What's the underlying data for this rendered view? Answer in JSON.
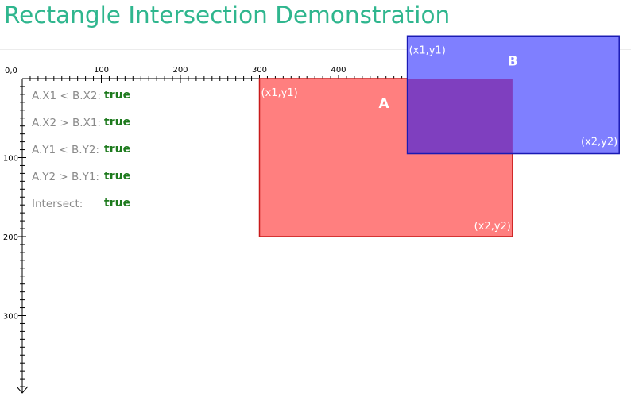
{
  "title": "Rectangle Intersection Demonstration",
  "axes": {
    "origin_label": "0,0",
    "x_tick_labels": [
      "100",
      "200",
      "300",
      "400"
    ],
    "y_tick_labels": [
      "100",
      "200",
      "300"
    ]
  },
  "rects": {
    "a": {
      "name": "A",
      "x1": 300,
      "y1": 0,
      "x2": 620,
      "y2": 200,
      "tl_label": "(x1,y1)",
      "br_label": "(x2,y2)",
      "fill": "#ff7f7f",
      "stroke": "#c81a1a"
    },
    "b": {
      "name": "B",
      "x1": 487,
      "y1": -54,
      "x2": 755,
      "y2": 95,
      "tl_label": "(x1,y1)",
      "br_label": "(x2,y2)",
      "fill": "#7f7fff",
      "stroke": "#1a1ab4"
    }
  },
  "overlap_fill": "#7f3fbf",
  "conditions": [
    {
      "label": "A.X1 < B.X2:",
      "value": "true"
    },
    {
      "label": "A.X2 > B.X1:",
      "value": "true"
    },
    {
      "label": "A.Y1 < B.Y2:",
      "value": "true"
    },
    {
      "label": "A.Y2 > B.Y1:",
      "value": "true"
    },
    {
      "label": "Intersect:",
      "value": "true"
    }
  ]
}
